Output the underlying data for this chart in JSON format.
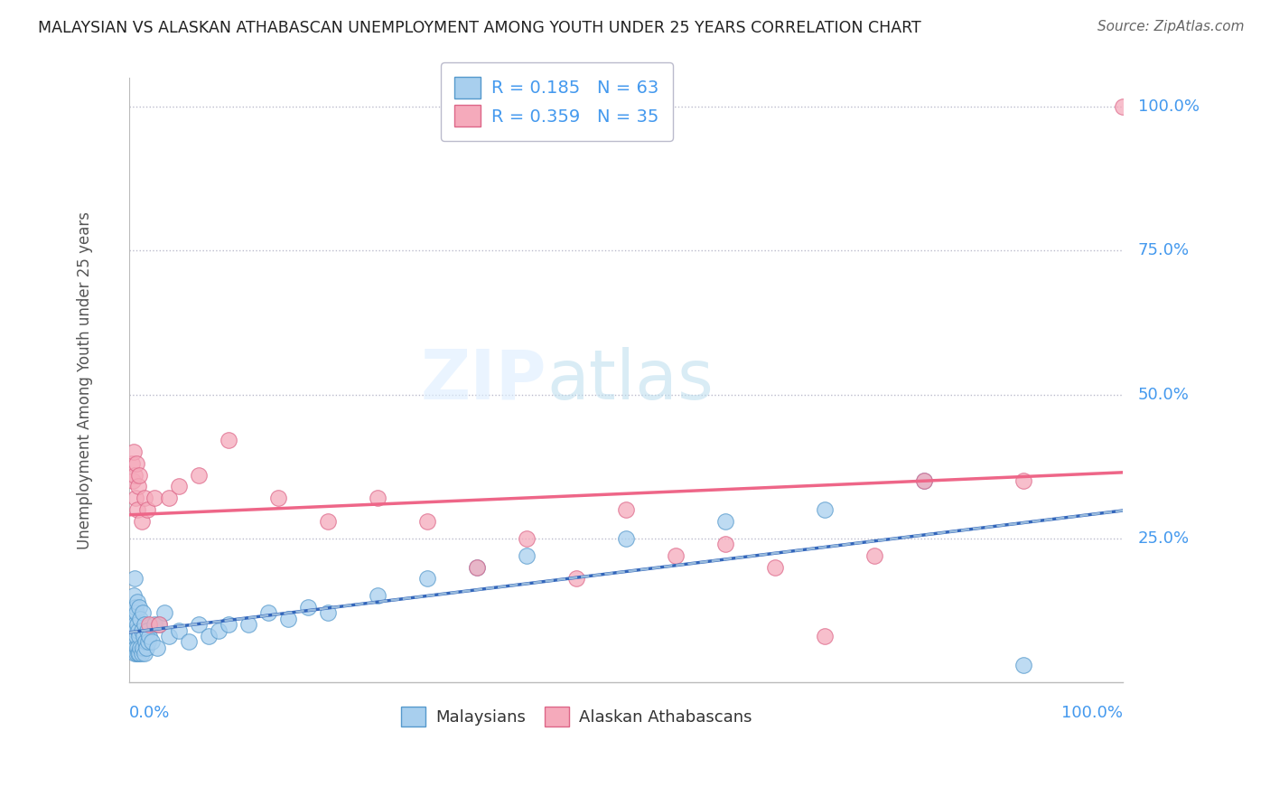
{
  "title": "MALAYSIAN VS ALASKAN ATHABASCAN UNEMPLOYMENT AMONG YOUTH UNDER 25 YEARS CORRELATION CHART",
  "source": "Source: ZipAtlas.com",
  "ylabel": "Unemployment Among Youth under 25 years",
  "ytick_labels": [
    "100.0%",
    "75.0%",
    "50.0%",
    "25.0%"
  ],
  "ytick_vals": [
    1.0,
    0.75,
    0.5,
    0.25
  ],
  "legend_r1": "0.185",
  "legend_n1": "63",
  "legend_r2": "0.359",
  "legend_n2": "35",
  "color_malaysian": "#A8CFEE",
  "color_athabascan": "#F5AABB",
  "edge_malaysian": "#5599CC",
  "edge_athabascan": "#DD6688",
  "line_malaysian": "#3366BB",
  "line_athabascan": "#EE6688",
  "background_color": "#FFFFFF",
  "grid_color": "#CCCCCC",
  "title_color": "#222222",
  "source_color": "#666666",
  "axis_label_color": "#4499EE",
  "malaysian_x": [
    0.001,
    0.002,
    0.003,
    0.003,
    0.004,
    0.004,
    0.005,
    0.005,
    0.005,
    0.006,
    0.006,
    0.006,
    0.007,
    0.007,
    0.007,
    0.008,
    0.008,
    0.008,
    0.009,
    0.009,
    0.01,
    0.01,
    0.01,
    0.011,
    0.011,
    0.012,
    0.012,
    0.013,
    0.013,
    0.014,
    0.015,
    0.015,
    0.016,
    0.017,
    0.018,
    0.019,
    0.02,
    0.022,
    0.025,
    0.028,
    0.03,
    0.035,
    0.04,
    0.05,
    0.06,
    0.07,
    0.08,
    0.09,
    0.1,
    0.12,
    0.14,
    0.16,
    0.18,
    0.2,
    0.25,
    0.3,
    0.35,
    0.4,
    0.5,
    0.6,
    0.7,
    0.8,
    0.9
  ],
  "malaysian_y": [
    0.08,
    0.1,
    0.06,
    0.12,
    0.08,
    0.15,
    0.05,
    0.1,
    0.18,
    0.06,
    0.09,
    0.13,
    0.05,
    0.08,
    0.12,
    0.06,
    0.1,
    0.14,
    0.05,
    0.09,
    0.05,
    0.08,
    0.13,
    0.06,
    0.11,
    0.05,
    0.09,
    0.06,
    0.12,
    0.08,
    0.05,
    0.1,
    0.07,
    0.06,
    0.09,
    0.07,
    0.08,
    0.07,
    0.1,
    0.06,
    0.1,
    0.12,
    0.08,
    0.09,
    0.07,
    0.1,
    0.08,
    0.09,
    0.1,
    0.1,
    0.12,
    0.11,
    0.13,
    0.12,
    0.15,
    0.18,
    0.2,
    0.22,
    0.25,
    0.28,
    0.3,
    0.35,
    0.03
  ],
  "athabascan_x": [
    0.002,
    0.003,
    0.004,
    0.005,
    0.006,
    0.007,
    0.008,
    0.009,
    0.01,
    0.012,
    0.015,
    0.018,
    0.02,
    0.025,
    0.03,
    0.04,
    0.05,
    0.07,
    0.1,
    0.15,
    0.2,
    0.25,
    0.3,
    0.35,
    0.4,
    0.45,
    0.5,
    0.55,
    0.6,
    0.65,
    0.7,
    0.75,
    0.8,
    0.9,
    1.0
  ],
  "athabascan_y": [
    0.38,
    0.35,
    0.4,
    0.36,
    0.32,
    0.38,
    0.3,
    0.34,
    0.36,
    0.28,
    0.32,
    0.3,
    0.1,
    0.32,
    0.1,
    0.32,
    0.34,
    0.36,
    0.42,
    0.32,
    0.28,
    0.32,
    0.28,
    0.2,
    0.25,
    0.18,
    0.3,
    0.22,
    0.24,
    0.2,
    0.08,
    0.22,
    0.35,
    0.35,
    1.0
  ]
}
